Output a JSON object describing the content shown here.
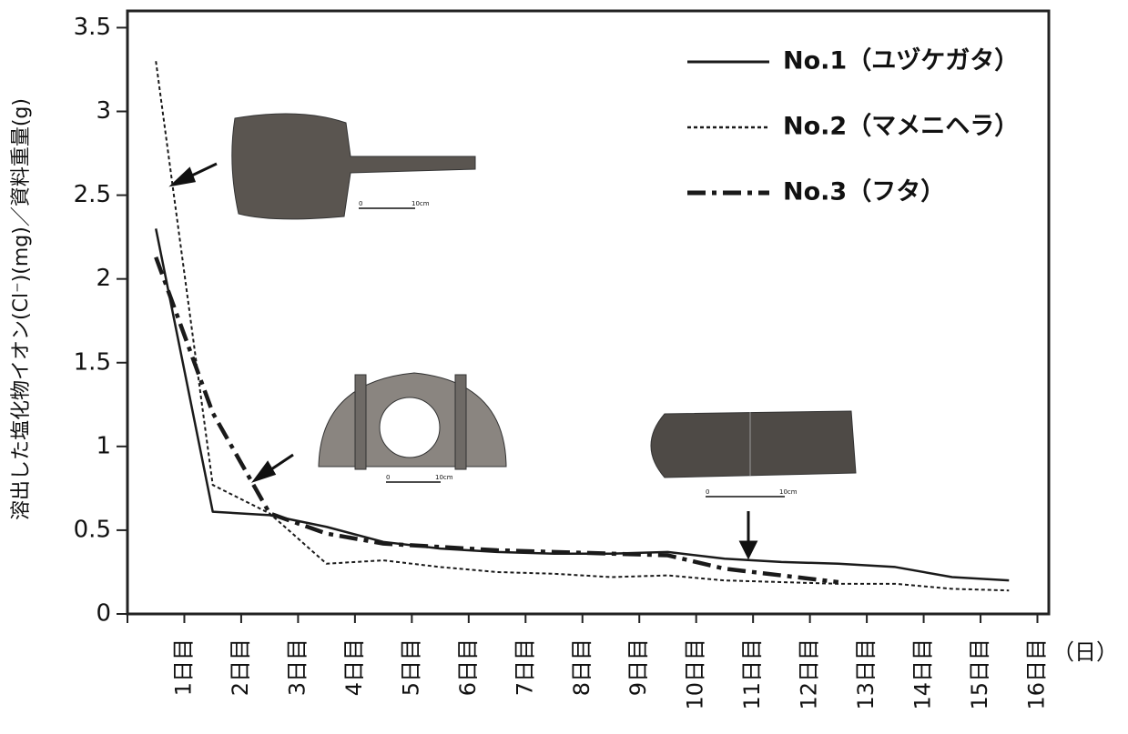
{
  "chart_data": {
    "type": "line",
    "y_label": "溶出した塩化物イオン(Cl⁻)(mg)／資料重量(g)",
    "x_unit": "（日）",
    "x": [
      0.5,
      1.5,
      2.5,
      3.5,
      4.5,
      5.5,
      6.5,
      7.5,
      8.5,
      9.5,
      10.5,
      11.5,
      12.5,
      13.5,
      14.5,
      15.5
    ],
    "series": [
      {
        "name": "No.1（ユヅケガタ）",
        "color": "#1a1a1a",
        "linestyle": "solid",
        "values": [
          2.3,
          0.61,
          0.59,
          0.52,
          0.43,
          0.39,
          0.37,
          0.36,
          0.36,
          0.37,
          0.33,
          0.31,
          0.3,
          0.28,
          0.22,
          0.2
        ]
      },
      {
        "name": "No.2（マメニヘラ）",
        "color": "#1a1a1a",
        "linestyle": "dotted",
        "values": [
          3.3,
          0.77,
          0.6,
          0.3,
          0.32,
          0.28,
          0.25,
          0.24,
          0.22,
          0.23,
          0.2,
          0.19,
          0.18,
          0.18,
          0.15,
          0.14
        ]
      },
      {
        "name": "No.3（フタ）",
        "color": "#1a1a1a",
        "linestyle": "dashdot",
        "values": [
          2.13,
          1.2,
          0.6,
          0.48,
          0.42,
          0.4,
          0.38,
          0.37,
          0.36,
          0.35,
          0.27,
          0.23,
          0.19,
          null,
          null,
          null
        ]
      }
    ],
    "xlim": [
      0,
      16.2
    ],
    "xticks": [
      {
        "value": 1,
        "label": "1日目"
      },
      {
        "value": 2,
        "label": "2日目"
      },
      {
        "value": 3,
        "label": "3日目"
      },
      {
        "value": 4,
        "label": "4日目"
      },
      {
        "value": 5,
        "label": "5日目"
      },
      {
        "value": 6,
        "label": "6日目"
      },
      {
        "value": 7,
        "label": "7日目"
      },
      {
        "value": 8,
        "label": "8日目"
      },
      {
        "value": 9,
        "label": "9日目"
      },
      {
        "value": 10,
        "label": "10日目"
      },
      {
        "value": 11,
        "label": "11日目"
      },
      {
        "value": 12,
        "label": "12日目"
      },
      {
        "value": 13,
        "label": "13日目"
      },
      {
        "value": 14,
        "label": "14日目"
      },
      {
        "value": 15,
        "label": "15日目"
      },
      {
        "value": 16,
        "label": "16日目"
      }
    ],
    "ylim": [
      0,
      3.6
    ],
    "yticks": [
      0,
      0.5,
      1,
      1.5,
      2,
      2.5,
      3,
      3.5
    ],
    "legend": "upper right",
    "scale_labels": [
      "0",
      "10cm"
    ]
  }
}
